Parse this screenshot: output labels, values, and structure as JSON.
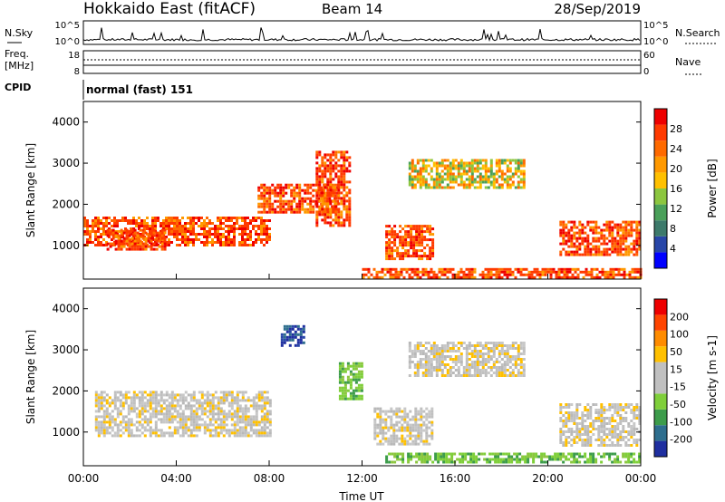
{
  "header": {
    "station": "Hokkaido East (fitACF)",
    "beam": "Beam 14",
    "date": "28/Sep/2019"
  },
  "strip_panels": {
    "nsky": {
      "label": "N.Sky",
      "ticks": [
        "10^5",
        "10^0"
      ]
    },
    "nsearch": {
      "label": "N.Search",
      "ticks": [
        "10^5",
        "10^0"
      ]
    },
    "freq": {
      "label_line1": "Freq.",
      "label_line2": "[MHz]",
      "ticks": [
        "18",
        "8"
      ]
    },
    "nave": {
      "label": "Nave",
      "ticks": [
        "60",
        "0"
      ]
    },
    "cpid": {
      "label": "CPID",
      "value": "normal (fast) 151"
    }
  },
  "chart_data": [
    {
      "type": "heatmap",
      "name": "power",
      "ylabel": "Slant Range [km]",
      "yticks": [
        "1000",
        "2000",
        "3000",
        "4000"
      ],
      "xticks": [
        "00:00",
        "04:00",
        "08:00",
        "12:00",
        "16:00",
        "20:00",
        "00:00"
      ],
      "xlim": [
        "00:00",
        "24:00"
      ],
      "ylim": [
        180,
        4500
      ],
      "colorbar": {
        "label": "Power [dB]",
        "ticks": [
          "28",
          "24",
          "20",
          "16",
          "12",
          "8",
          "4"
        ],
        "colors": [
          "#0000ff",
          "#2846a8",
          "#3d7a6b",
          "#4aa05a",
          "#8cc63f",
          "#ffc000",
          "#ff9900",
          "#ff6a00",
          "#ff3a00",
          "#ee0000"
        ]
      },
      "regions": [
        {
          "t0": 0.0,
          "t1": 8.0,
          "r0": 1000,
          "r1": 1700,
          "value": "high"
        },
        {
          "t0": 1.0,
          "t1": 3.5,
          "r0": 900,
          "r1": 1400,
          "value": "high"
        },
        {
          "t0": 7.5,
          "t1": 11.0,
          "r0": 1800,
          "r1": 2500,
          "value": "high"
        },
        {
          "t0": 10.0,
          "t1": 11.5,
          "r0": 1500,
          "r1": 3300,
          "value": "high"
        },
        {
          "t0": 13.0,
          "t1": 15.0,
          "r0": 700,
          "r1": 1500,
          "value": "high"
        },
        {
          "t0": 14.0,
          "t1": 19.0,
          "r0": 2400,
          "r1": 3100,
          "value": "medium"
        },
        {
          "t0": 20.5,
          "t1": 24.0,
          "r0": 800,
          "r1": 1600,
          "value": "high"
        },
        {
          "t0": 12.0,
          "t1": 24.0,
          "r0": 250,
          "r1": 450,
          "value": "high"
        }
      ],
      "xlabel": "Time UT"
    },
    {
      "type": "heatmap",
      "name": "velocity",
      "ylabel": "Slant Range [km]",
      "yticks": [
        "1000",
        "2000",
        "3000",
        "4000"
      ],
      "xticks": [
        "00:00",
        "04:00",
        "08:00",
        "12:00",
        "16:00",
        "20:00",
        "00:00"
      ],
      "xlim": [
        "00:00",
        "24:00"
      ],
      "ylim": [
        180,
        4500
      ],
      "colorbar": {
        "label": "Velocity [m s-1]",
        "ticks": [
          "200",
          "100",
          "50",
          "15",
          "-15",
          "-50",
          "-100",
          "-200"
        ],
        "colors": [
          "#1f2fa0",
          "#2e6e8e",
          "#3d9c4b",
          "#7fcf3a",
          "#c0c0c0",
          "#c0c0c0",
          "#ffc000",
          "#ff8c00",
          "#ff4500",
          "#ee0000"
        ]
      },
      "regions": [
        {
          "t0": 0.5,
          "t1": 8.0,
          "r0": 900,
          "r1": 2000,
          "value": "grey"
        },
        {
          "t0": 8.5,
          "t1": 9.5,
          "r0": 3100,
          "r1": 3600,
          "value": "blue"
        },
        {
          "t0": 11.0,
          "t1": 12.0,
          "r0": 1800,
          "r1": 2700,
          "value": "green"
        },
        {
          "t0": 12.5,
          "t1": 15.0,
          "r0": 700,
          "r1": 1600,
          "value": "grey"
        },
        {
          "t0": 14.0,
          "t1": 19.0,
          "r0": 2400,
          "r1": 3200,
          "value": "grey"
        },
        {
          "t0": 20.5,
          "t1": 24.0,
          "r0": 700,
          "r1": 1700,
          "value": "grey"
        },
        {
          "t0": 13.0,
          "t1": 24.0,
          "r0": 300,
          "r1": 500,
          "value": "green"
        }
      ],
      "xlabel": "Time UT"
    }
  ]
}
